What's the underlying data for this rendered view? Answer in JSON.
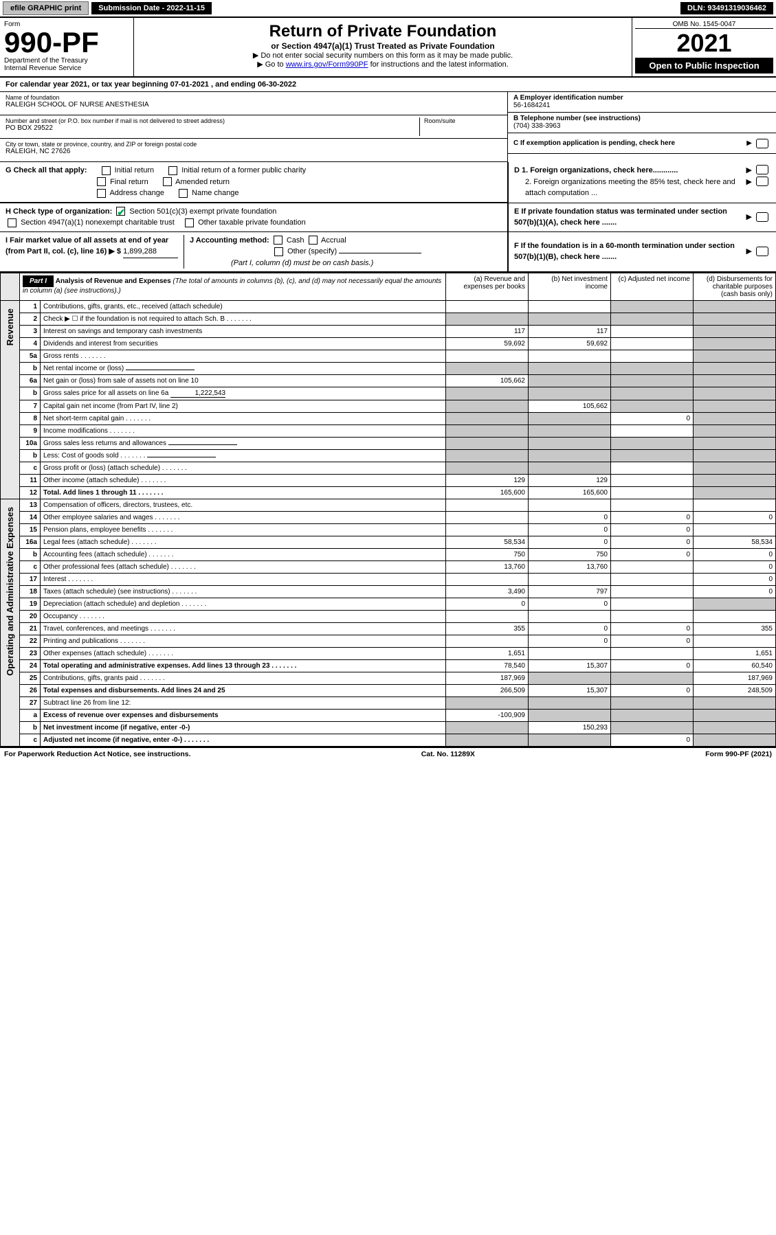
{
  "top": {
    "efile": "efile GRAPHIC print",
    "submission_label": "Submission Date - 2022-11-15",
    "dln": "DLN: 93491319036462"
  },
  "header": {
    "form_label": "Form",
    "form_number": "990-PF",
    "dept": "Department of the Treasury",
    "irs": "Internal Revenue Service",
    "title": "Return of Private Foundation",
    "subtitle": "or Section 4947(a)(1) Trust Treated as Private Foundation",
    "instr1": "▶ Do not enter social security numbers on this form as it may be made public.",
    "instr2_pre": "▶ Go to ",
    "instr2_link": "www.irs.gov/Form990PF",
    "instr2_post": " for instructions and the latest information.",
    "omb": "OMB No. 1545-0047",
    "year": "2021",
    "open": "Open to Public Inspection"
  },
  "calendar": {
    "prefix": "For calendar year 2021, or tax year beginning ",
    "begin": "07-01-2021",
    "mid": " , and ending ",
    "end": "06-30-2022"
  },
  "name": {
    "label": "Name of foundation",
    "value": "RALEIGH SCHOOL OF NURSE ANESTHESIA"
  },
  "ein": {
    "label": "A Employer identification number",
    "value": "56-1684241"
  },
  "address": {
    "label": "Number and street (or P.O. box number if mail is not delivered to street address)",
    "value": "PO BOX 29522",
    "room_label": "Room/suite"
  },
  "phone": {
    "label": "B Telephone number (see instructions)",
    "value": "(704) 338-3963"
  },
  "city": {
    "label": "City or town, state or province, country, and ZIP or foreign postal code",
    "value": "RALEIGH, NC  27626"
  },
  "c_line": "C If exemption application is pending, check here",
  "g": {
    "label": "G Check all that apply:",
    "opts": [
      "Initial return",
      "Initial return of a former public charity",
      "Final return",
      "Amended return",
      "Address change",
      "Name change"
    ]
  },
  "d": {
    "d1": "D 1. Foreign organizations, check here............",
    "d2": "2. Foreign organizations meeting the 85% test, check here and attach computation ..."
  },
  "h": {
    "label": "H Check type of organization:",
    "o1": "Section 501(c)(3) exempt private foundation",
    "o2": "Section 4947(a)(1) nonexempt charitable trust",
    "o3": "Other taxable private foundation"
  },
  "e_line": "E If private foundation status was terminated under section 507(b)(1)(A), check here .......",
  "i": {
    "label": "I Fair market value of all assets at end of year (from Part II, col. (c), line 16) ▶ $",
    "value": "1,899,288"
  },
  "j": {
    "label": "J Accounting method:",
    "cash": "Cash",
    "accrual": "Accrual",
    "other": "Other (specify)",
    "note": "(Part I, column (d) must be on cash basis.)"
  },
  "f_line": "F If the foundation is in a 60-month termination under section 507(b)(1)(B), check here .......",
  "part1": {
    "hdr": "Part I",
    "title": "Analysis of Revenue and Expenses",
    "note": "(The total of amounts in columns (b), (c), and (d) may not necessarily equal the amounts in column (a) (see instructions).)",
    "col_a": "(a) Revenue and expenses per books",
    "col_b": "(b) Net investment income",
    "col_c": "(c) Adjusted net income",
    "col_d": "(d) Disbursements for charitable purposes (cash basis only)"
  },
  "side_rev": "Revenue",
  "side_exp": "Operating and Administrative Expenses",
  "rows": [
    {
      "n": "1",
      "label": "Contributions, gifts, grants, etc., received (attach schedule)",
      "a": "",
      "b": "",
      "c": "g",
      "d": "g"
    },
    {
      "n": "2",
      "label": "Check ▶ ☐ if the foundation is not required to attach Sch. B",
      "a": "g",
      "b": "g",
      "c": "g",
      "d": "g",
      "dots": true
    },
    {
      "n": "3",
      "label": "Interest on savings and temporary cash investments",
      "a": "117",
      "b": "117",
      "c": "",
      "d": "g"
    },
    {
      "n": "4",
      "label": "Dividends and interest from securities",
      "a": "59,692",
      "b": "59,692",
      "c": "",
      "d": "g"
    },
    {
      "n": "5a",
      "label": "Gross rents",
      "a": "",
      "b": "",
      "c": "",
      "d": "g",
      "dots": true
    },
    {
      "n": "b",
      "label": "Net rental income or (loss)",
      "a": "g",
      "b": "g",
      "c": "g",
      "d": "g",
      "inline": true
    },
    {
      "n": "6a",
      "label": "Net gain or (loss) from sale of assets not on line 10",
      "a": "105,662",
      "b": "g",
      "c": "g",
      "d": "g"
    },
    {
      "n": "b",
      "label": "Gross sales price for all assets on line 6a",
      "extra": "1,222,543",
      "a": "g",
      "b": "g",
      "c": "g",
      "d": "g",
      "inline": true
    },
    {
      "n": "7",
      "label": "Capital gain net income (from Part IV, line 2)",
      "a": "g",
      "b": "105,662",
      "c": "g",
      "d": "g"
    },
    {
      "n": "8",
      "label": "Net short-term capital gain",
      "a": "g",
      "b": "g",
      "c": "0",
      "d": "g",
      "dots": true
    },
    {
      "n": "9",
      "label": "Income modifications",
      "a": "g",
      "b": "g",
      "c": "",
      "d": "g",
      "dots": true
    },
    {
      "n": "10a",
      "label": "Gross sales less returns and allowances",
      "a": "g",
      "b": "g",
      "c": "g",
      "d": "g",
      "inline": true
    },
    {
      "n": "b",
      "label": "Less: Cost of goods sold",
      "a": "g",
      "b": "g",
      "c": "g",
      "d": "g",
      "inline": true,
      "dots": true
    },
    {
      "n": "c",
      "label": "Gross profit or (loss) (attach schedule)",
      "a": "g",
      "b": "g",
      "c": "",
      "d": "g",
      "dots": true
    },
    {
      "n": "11",
      "label": "Other income (attach schedule)",
      "a": "129",
      "b": "129",
      "c": "",
      "d": "g",
      "dots": true
    },
    {
      "n": "12",
      "label": "Total. Add lines 1 through 11",
      "a": "165,600",
      "b": "165,600",
      "c": "",
      "d": "g",
      "bold": true,
      "dots": true
    },
    {
      "n": "13",
      "label": "Compensation of officers, directors, trustees, etc.",
      "a": "",
      "b": "",
      "c": "",
      "d": ""
    },
    {
      "n": "14",
      "label": "Other employee salaries and wages",
      "a": "",
      "b": "0",
      "c": "0",
      "d": "0",
      "dots": true
    },
    {
      "n": "15",
      "label": "Pension plans, employee benefits",
      "a": "",
      "b": "0",
      "c": "0",
      "d": "",
      "dots": true
    },
    {
      "n": "16a",
      "label": "Legal fees (attach schedule)",
      "a": "58,534",
      "b": "0",
      "c": "0",
      "d": "58,534",
      "dots": true
    },
    {
      "n": "b",
      "label": "Accounting fees (attach schedule)",
      "a": "750",
      "b": "750",
      "c": "0",
      "d": "0",
      "dots": true
    },
    {
      "n": "c",
      "label": "Other professional fees (attach schedule)",
      "a": "13,760",
      "b": "13,760",
      "c": "",
      "d": "0",
      "dots": true
    },
    {
      "n": "17",
      "label": "Interest",
      "a": "",
      "b": "",
      "c": "",
      "d": "0",
      "dots": true
    },
    {
      "n": "18",
      "label": "Taxes (attach schedule) (see instructions)",
      "a": "3,490",
      "b": "797",
      "c": "",
      "d": "0",
      "dots": true
    },
    {
      "n": "19",
      "label": "Depreciation (attach schedule) and depletion",
      "a": "0",
      "b": "0",
      "c": "",
      "d": "g",
      "dots": true
    },
    {
      "n": "20",
      "label": "Occupancy",
      "a": "",
      "b": "",
      "c": "",
      "d": "",
      "dots": true
    },
    {
      "n": "21",
      "label": "Travel, conferences, and meetings",
      "a": "355",
      "b": "0",
      "c": "0",
      "d": "355",
      "dots": true
    },
    {
      "n": "22",
      "label": "Printing and publications",
      "a": "",
      "b": "0",
      "c": "0",
      "d": "",
      "dots": true
    },
    {
      "n": "23",
      "label": "Other expenses (attach schedule)",
      "a": "1,651",
      "b": "",
      "c": "",
      "d": "1,651",
      "dots": true
    },
    {
      "n": "24",
      "label": "Total operating and administrative expenses. Add lines 13 through 23",
      "a": "78,540",
      "b": "15,307",
      "c": "0",
      "d": "60,540",
      "bold": true,
      "dots": true
    },
    {
      "n": "25",
      "label": "Contributions, gifts, grants paid",
      "a": "187,969",
      "b": "g",
      "c": "g",
      "d": "187,969",
      "dots": true
    },
    {
      "n": "26",
      "label": "Total expenses and disbursements. Add lines 24 and 25",
      "a": "266,509",
      "b": "15,307",
      "c": "0",
      "d": "248,509",
      "bold": true
    },
    {
      "n": "27",
      "label": "Subtract line 26 from line 12:",
      "a": "g",
      "b": "g",
      "c": "g",
      "d": "g"
    },
    {
      "n": "a",
      "label": "Excess of revenue over expenses and disbursements",
      "a": "-100,909",
      "b": "g",
      "c": "g",
      "d": "g",
      "bold": true
    },
    {
      "n": "b",
      "label": "Net investment income (if negative, enter -0-)",
      "a": "g",
      "b": "150,293",
      "c": "g",
      "d": "g",
      "bold": true
    },
    {
      "n": "c",
      "label": "Adjusted net income (if negative, enter -0-)",
      "a": "g",
      "b": "g",
      "c": "0",
      "d": "g",
      "bold": true,
      "dots": true
    }
  ],
  "footer": {
    "left": "For Paperwork Reduction Act Notice, see instructions.",
    "mid": "Cat. No. 11289X",
    "right": "Form 990-PF (2021)"
  }
}
